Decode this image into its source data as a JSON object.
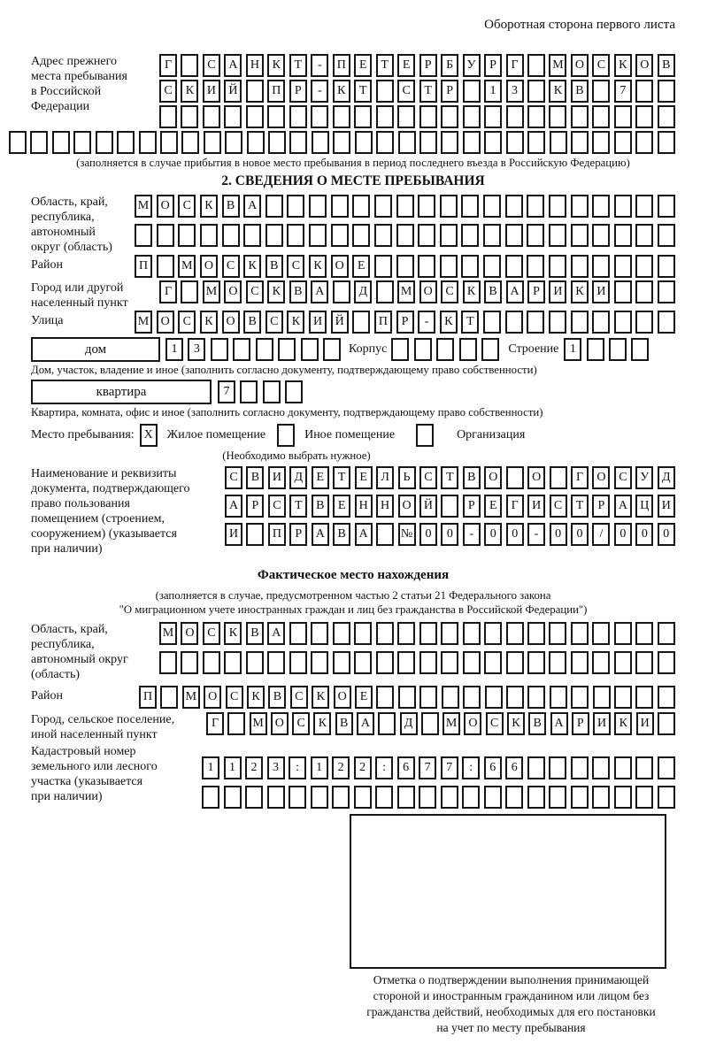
{
  "page": {
    "side_note": "Оборотная сторона первого листа"
  },
  "prev_address": {
    "label_lines": [
      "Адрес прежнего",
      "места пребывания",
      "в Российской",
      "Федерации"
    ],
    "row1": {
      "n": 24,
      "text": "Г САНКТ-ПЕТЕРБУРГ МОСКОВ"
    },
    "row2": {
      "n": 24,
      "text": "СКИЙ ПР-КТ СТР 13 КВ 7"
    },
    "row3": {
      "n": 24,
      "text": ""
    },
    "row4": {
      "n": 31,
      "text": ""
    },
    "note": "(заполняется в случае прибытия в новое место пребывания в период последнего въезда в Российскую Федерацию)"
  },
  "section2": {
    "title": "2. СВЕДЕНИЯ О МЕСТЕ ПРЕБЫВАНИЯ",
    "region": {
      "label_lines": [
        "Область, край,",
        "республика,",
        "автономный",
        "округ (область)"
      ],
      "row1": {
        "n": 25,
        "text": "МОСКВА"
      },
      "row2": {
        "n": 25,
        "text": ""
      }
    },
    "district": {
      "label": "Район",
      "row": {
        "n": 25,
        "text": "П МОСКВСКОЕ"
      }
    },
    "city": {
      "label_lines": [
        "Город или другой",
        "населенный пункт"
      ],
      "row": {
        "n": 24,
        "text": "Г МОСКВА Д МОСКВАРИКИ"
      }
    },
    "street": {
      "label": "Улица",
      "row": {
        "n": 25,
        "text": "МОСКОВСКИЙ ПР-КТ"
      }
    },
    "house": {
      "box_label": "дом",
      "cells": {
        "n": 8,
        "text": "13"
      },
      "korpus_label": "Корпус",
      "korpus_cells": {
        "n": 5,
        "text": ""
      },
      "stroenie_label": "Строение",
      "stroenie_cells": {
        "n": 4,
        "text": "1"
      },
      "caption": "Дом, участок, владение и иное (заполнить согласно документу, подтверждающему право собственности)"
    },
    "apartment": {
      "box_label": "квартира",
      "cells": {
        "n": 4,
        "text": "7"
      },
      "caption": "Квартира, комната, офис и иное (заполнить согласно документу, подтверждающему право собственности)"
    },
    "stay_type": {
      "label": "Место пребывания:",
      "options": [
        {
          "label": "Жилое помещение",
          "mark": "X"
        },
        {
          "label": "Иное помещение",
          "mark": ""
        },
        {
          "label": "Организация",
          "mark": ""
        }
      ],
      "note": "(Необходимо выбрать нужное)"
    },
    "document": {
      "label_lines": [
        "Наименование и реквизиты",
        "документа, подтверждающего",
        "право пользования",
        "помещением (строением,",
        "сооружением) (указывается",
        "при наличии)"
      ],
      "row1": {
        "n": 21,
        "text": "СВИДЕТЕЛЬСТВО О ГОСУД"
      },
      "row2": {
        "n": 21,
        "text": "АРСТВЕННОЙ РЕГИСТРАЦИ"
      },
      "row3": {
        "n": 21,
        "text": "И ПРАВА №00-00-00/000"
      }
    }
  },
  "actual_location": {
    "title": "Фактическое место нахождения",
    "note_lines": [
      "(заполняется в случае, предусмотренном частью 2 статьи 21 Федерального закона",
      "\"О миграционном учете иностранных граждан и лиц без гражданства в Российской Федерации\")"
    ],
    "region": {
      "label_lines": [
        "Область, край,",
        "республика,",
        "автономный округ",
        "(область)"
      ],
      "row1": {
        "n": 24,
        "text": "МОСКВА"
      },
      "row2": {
        "n": 24,
        "text": ""
      }
    },
    "district": {
      "label": "Район",
      "row": {
        "n": 25,
        "text": "П МОСКВСКОЕ"
      }
    },
    "city": {
      "label_lines": [
        "Город, сельское поселение,",
        "иной населенный пункт"
      ],
      "row": {
        "n": 22,
        "text": "Г МОСКВА Д МОСКВАРИКИ"
      }
    },
    "cadastre": {
      "label_lines": [
        "Кадастровый номер",
        "земельного или лесного",
        "участка (указывается",
        "при наличии)"
      ],
      "row1": {
        "n": 22,
        "text": "1123:122:677:66"
      },
      "row2": {
        "n": 22,
        "text": ""
      }
    }
  },
  "stamp": {
    "caption_lines": [
      "Отметка о подтверждении выполнения принимающей",
      "стороной и иностранным гражданином или лицом без",
      "гражданства действий, необходимых для его постановки",
      "на учет по месту пребывания"
    ]
  }
}
